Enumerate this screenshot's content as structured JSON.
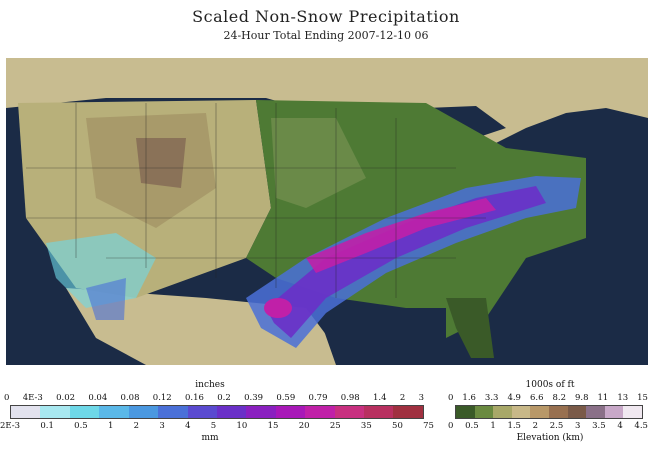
{
  "title": "Scaled Non-Snow Precipitation",
  "subtitle": "24-Hour Total Ending 2007-12-10 06",
  "precip_legend": {
    "top_unit": "inches",
    "bottom_unit": "mm",
    "top_ticks": [
      "0",
      "4E-3",
      "0.02",
      "0.04",
      "0.08",
      "0.12",
      "0.16",
      "0.2",
      "0.39",
      "0.59",
      "0.79",
      "0.98",
      "1.4",
      "2",
      "3"
    ],
    "bottom_ticks": [
      "2E-3",
      "0.1",
      "0.5",
      "1",
      "2",
      "3",
      "4",
      "5",
      "10",
      "15",
      "20",
      "25",
      "35",
      "50",
      "75"
    ],
    "colors": [
      "#e2e2ee",
      "#a8e8f0",
      "#6ed8e8",
      "#5ab8e8",
      "#4a98e0",
      "#4a70d8",
      "#5a4ad0",
      "#6a30c8",
      "#8a20c0",
      "#a818b8",
      "#c020a8",
      "#c83080",
      "#b83060",
      "#a03040"
    ]
  },
  "elevation_legend": {
    "top_unit": "1000s of ft",
    "bottom_unit": "Elevation (km)",
    "top_ticks": [
      "0",
      "1.6",
      "3.3",
      "4.9",
      "6.6",
      "8.2",
      "9.8",
      "11",
      "13",
      "15"
    ],
    "bottom_ticks": [
      "0",
      "0.5",
      "1",
      "1.5",
      "2",
      "2.5",
      "3",
      "3.5",
      "4",
      "4.5"
    ],
    "colors": [
      "#3a5a28",
      "#6a8a40",
      "#a8a868",
      "#c8b888",
      "#b89868",
      "#987050",
      "#7a5a48",
      "#8a7088",
      "#c8a8c8",
      "#f0e8f0"
    ]
  }
}
